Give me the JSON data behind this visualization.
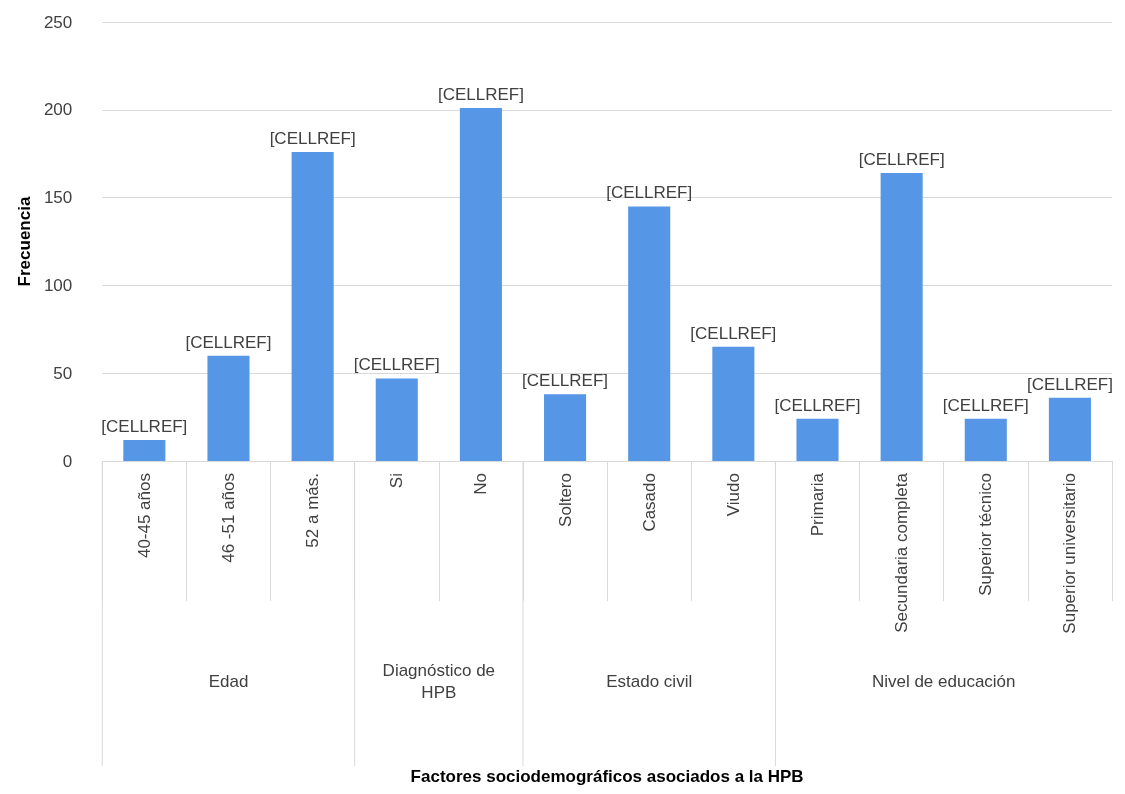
{
  "chart_data": {
    "type": "bar",
    "ylabel": "Frecuencia",
    "categories": [
      "40-45 años",
      "46 -51 años",
      "52 a más.",
      "Si",
      "No",
      "Soltero",
      "Casado",
      "Viudo",
      "Primaria",
      "Secundaria completa",
      "Superior técnico",
      "Superior universitario"
    ],
    "values": [
      12,
      60,
      176,
      47,
      201,
      38,
      145,
      65,
      24,
      164,
      24,
      36
    ],
    "value_labels": [
      "[CELLREF]",
      "[CELLREF]",
      "[CELLREF]",
      "[CELLREF]",
      "[CELLREF]",
      "[CELLREF]",
      "[CELLREF]",
      "[CELLREF]",
      "[CELLREF]",
      "[CELLREF]",
      "[CELLREF]",
      "[CELLREF]"
    ],
    "color": "#5596e6",
    "ylim": [
      0,
      250
    ],
    "yticks": [
      0,
      50,
      100,
      150,
      200,
      250
    ],
    "grid": "y",
    "annotations": [
      "Edad",
      "Diagnóstico de\nHPB",
      "Estado civil",
      "Nivel de educación",
      "Factores sociodemográficos asociados a la HPB"
    ]
  }
}
